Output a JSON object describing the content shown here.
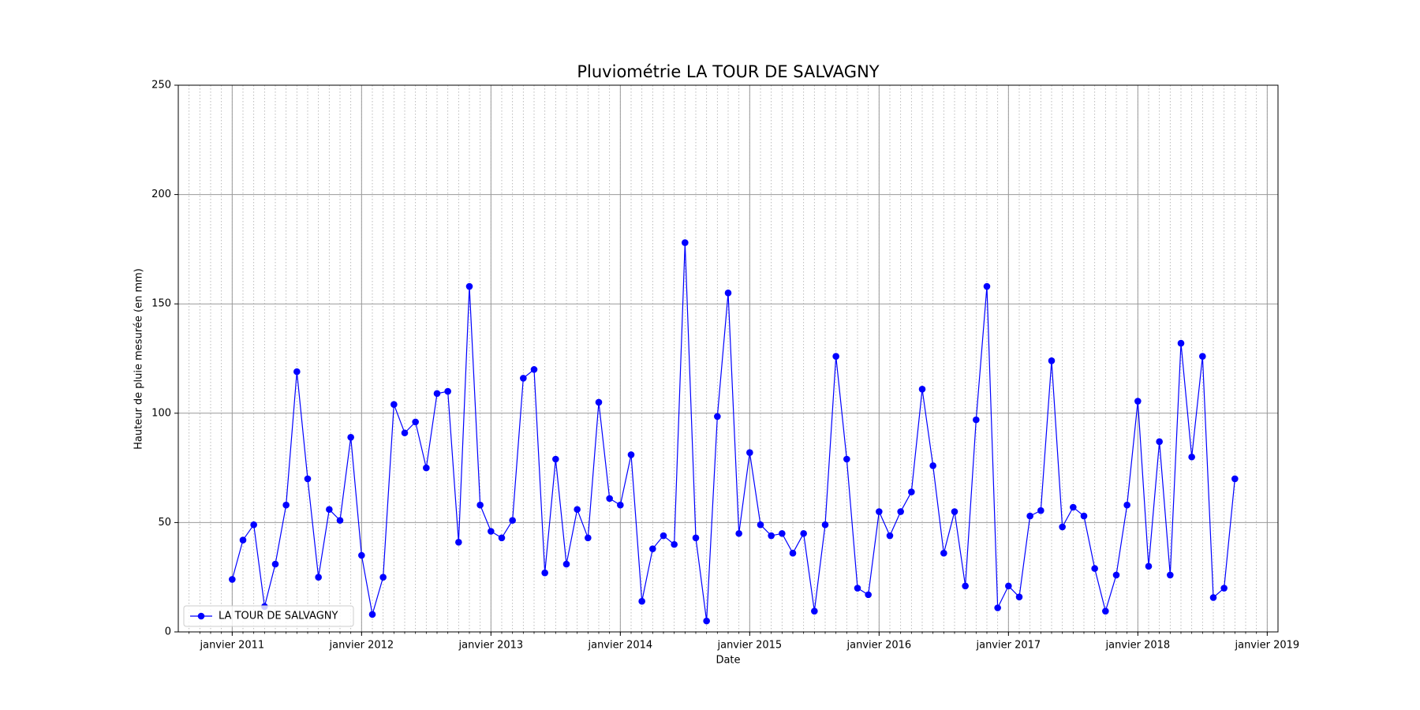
{
  "chart_data": {
    "type": "line",
    "title": "Pluviométrie LA TOUR DE SALVAGNY",
    "x_label": "Date",
    "y_label": "Hauteur de pluie mesurée (en mm)",
    "x": [
      "2011-01",
      "2011-02",
      "2011-03",
      "2011-04",
      "2011-05",
      "2011-06",
      "2011-07",
      "2011-08",
      "2011-09",
      "2011-10",
      "2011-11",
      "2011-12",
      "2012-01",
      "2012-02",
      "2012-03",
      "2012-04",
      "2012-05",
      "2012-06",
      "2012-07",
      "2012-08",
      "2012-09",
      "2012-10",
      "2012-11",
      "2012-12",
      "2013-01",
      "2013-02",
      "2013-03",
      "2013-04",
      "2013-05",
      "2013-06",
      "2013-07",
      "2013-08",
      "2013-09",
      "2013-10",
      "2013-11",
      "2013-12",
      "2014-01",
      "2014-02",
      "2014-03",
      "2014-04",
      "2014-05",
      "2014-06",
      "2014-07",
      "2014-08",
      "2014-09",
      "2014-10",
      "2014-11",
      "2014-12",
      "2015-01",
      "2015-02",
      "2015-03",
      "2015-04",
      "2015-05",
      "2015-06",
      "2015-07",
      "2015-08",
      "2015-09",
      "2015-10",
      "2015-11",
      "2015-12",
      "2016-01",
      "2016-02",
      "2016-03",
      "2016-04",
      "2016-05",
      "2016-06",
      "2016-07",
      "2016-08",
      "2016-09",
      "2016-10",
      "2016-11",
      "2016-12",
      "2017-01",
      "2017-02",
      "2017-03",
      "2017-04",
      "2017-05",
      "2017-06",
      "2017-07",
      "2017-08",
      "2017-09",
      "2017-10",
      "2017-11",
      "2017-12",
      "2018-01",
      "2018-02",
      "2018-03",
      "2018-04",
      "2018-05",
      "2018-06",
      "2018-07",
      "2018-08",
      "2018-09",
      "2018-10"
    ],
    "series": [
      {
        "name": "LA TOUR DE SALVAGNY",
        "color": "#0000ff",
        "marker": "circle",
        "values": [
          24,
          42,
          49,
          11.6,
          31,
          58,
          119,
          70,
          25,
          56,
          51,
          89,
          35,
          8,
          25,
          104,
          91,
          96,
          75,
          109,
          110,
          41,
          158,
          58,
          46,
          43,
          51,
          116,
          120,
          27,
          79,
          31,
          56,
          43,
          105,
          61,
          58,
          81,
          14,
          38,
          44,
          40,
          178,
          43,
          5,
          98.5,
          155,
          45,
          82,
          49,
          44,
          45,
          36,
          45,
          9.5,
          49,
          126,
          79,
          20,
          17,
          55,
          44,
          55,
          64,
          111,
          76,
          36,
          55,
          21,
          97,
          158,
          11,
          21,
          16,
          53,
          55.5,
          124,
          48,
          57,
          53,
          29,
          9.5,
          26,
          58,
          105.5,
          30,
          87,
          26,
          132,
          80,
          126,
          15.7,
          20,
          70
        ]
      }
    ],
    "xlim": [
      "2010-08",
      "2019-02"
    ],
    "xticks": [
      {
        "value": "2011-01",
        "label": "janvier 2011"
      },
      {
        "value": "2012-01",
        "label": "janvier 2012"
      },
      {
        "value": "2013-01",
        "label": "janvier 2013"
      },
      {
        "value": "2014-01",
        "label": "janvier 2014"
      },
      {
        "value": "2015-01",
        "label": "janvier 2015"
      },
      {
        "value": "2016-01",
        "label": "janvier 2016"
      },
      {
        "value": "2017-01",
        "label": "janvier 2017"
      },
      {
        "value": "2018-01",
        "label": "janvier 2018"
      },
      {
        "value": "2019-01",
        "label": "janvier 2019"
      }
    ],
    "ylim": [
      0,
      250
    ],
    "yticks": [
      0,
      50,
      100,
      150,
      200,
      250
    ],
    "grid": true,
    "minor_grid": "monthly",
    "legend": "lower left"
  }
}
